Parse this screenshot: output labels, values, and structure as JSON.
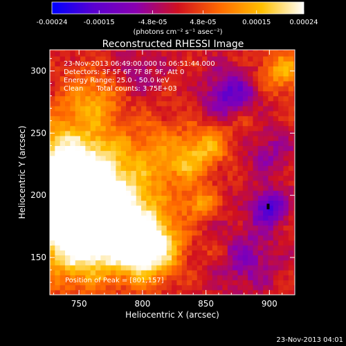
{
  "chart_data": {
    "type": "heatmap",
    "title": "Reconstructed RHESSI Image",
    "xlabel": "Heliocentric X (arcsec)",
    "ylabel": "Heliocentric Y (arcsec)",
    "xlim": [
      727,
      920
    ],
    "ylim": [
      120,
      317
    ],
    "x_ticks": [
      750,
      800,
      850,
      900
    ],
    "y_ticks": [
      150,
      200,
      250,
      300
    ],
    "colorbar": {
      "ticks": [
        "-0.00024",
        "-0.00015",
        "-4.8e-05",
        "4.8e-05",
        "0.00015",
        "0.00024"
      ],
      "tick_values": [
        -0.00024,
        -0.00015,
        -4.8e-05,
        4.8e-05,
        0.00015,
        0.00024
      ],
      "range": [
        -0.00024,
        0.00024
      ],
      "unit_label": "(photons cm⁻² s⁻¹ asec⁻²)",
      "colors": [
        "#0000ff",
        "#5a00d0",
        "#8a00b0",
        "#d01020",
        "#ff6a00",
        "#ffc000",
        "#ffffff"
      ]
    },
    "annotations": [
      "23-Nov-2013 06:49:00.000 to 06:51:44.000",
      "Detectors: 3F 5F 6F 7F 8F 9F, Att 0",
      "Energy Range: 25.0 - 50.0 keV",
      "Clean      Total counts: 3.75E+03"
    ],
    "peak_label": "Position of Peak = [801,157]",
    "peak": [
      801,
      157
    ],
    "sources": [
      {
        "x": 740,
        "y": 220,
        "value": 0.00024,
        "radius": 28
      },
      {
        "x": 765,
        "y": 190,
        "value": 0.00018,
        "radius": 30
      },
      {
        "x": 745,
        "y": 160,
        "value": 0.00016,
        "radius": 22
      },
      {
        "x": 805,
        "y": 157,
        "value": 0.00023,
        "radius": 16
      },
      {
        "x": 785,
        "y": 175,
        "value": 0.00014,
        "radius": 22
      },
      {
        "x": 815,
        "y": 235,
        "value": 8e-05,
        "radius": 18
      },
      {
        "x": 762,
        "y": 280,
        "value": 0.0001,
        "radius": 16
      },
      {
        "x": 852,
        "y": 240,
        "value": 0.00012,
        "radius": 12
      },
      {
        "x": 835,
        "y": 225,
        "value": 9e-05,
        "radius": 10
      },
      {
        "x": 845,
        "y": 195,
        "value": 0.00011,
        "radius": 9
      },
      {
        "x": 910,
        "y": 300,
        "value": 0.00013,
        "radius": 12
      },
      {
        "x": 880,
        "y": 262,
        "value": 6e-05,
        "radius": 10
      },
      {
        "x": 860,
        "y": 155,
        "value": 4e-05,
        "radius": 10
      },
      {
        "x": 870,
        "y": 280,
        "value": -0.00015,
        "radius": 14
      },
      {
        "x": 900,
        "y": 190,
        "value": -0.00017,
        "radius": 10
      },
      {
        "x": 880,
        "y": 150,
        "value": -9e-05,
        "radius": 18
      },
      {
        "x": 900,
        "y": 235,
        "value": -7e-05,
        "radius": 14
      },
      {
        "x": 795,
        "y": 300,
        "value": -6e-05,
        "radius": 14
      }
    ]
  },
  "footer_date": "23-Nov-2013 04:01"
}
